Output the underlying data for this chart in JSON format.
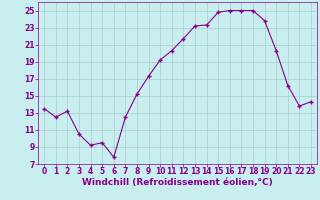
{
  "xlabel": "Windchill (Refroidissement éolien,°C)",
  "x": [
    0,
    1,
    2,
    3,
    4,
    5,
    6,
    7,
    8,
    9,
    10,
    11,
    12,
    13,
    14,
    15,
    16,
    17,
    18,
    19,
    20,
    21,
    22,
    23
  ],
  "y": [
    13.5,
    12.5,
    13.2,
    10.5,
    9.2,
    9.5,
    7.8,
    12.5,
    15.2,
    17.3,
    19.2,
    20.3,
    21.7,
    23.2,
    23.3,
    24.8,
    25.0,
    25.0,
    25.0,
    23.8,
    20.3,
    16.2,
    13.8,
    14.3
  ],
  "line_color": "#880088",
  "marker": "+",
  "background_color": "#c8eef0",
  "grid_color": "#aacccc",
  "ylim": [
    7,
    26
  ],
  "yticks": [
    7,
    9,
    11,
    13,
    15,
    17,
    19,
    21,
    23,
    25
  ],
  "xlim": [
    -0.5,
    23.5
  ],
  "xticks": [
    0,
    1,
    2,
    3,
    4,
    5,
    6,
    7,
    8,
    9,
    10,
    11,
    12,
    13,
    14,
    15,
    16,
    17,
    18,
    19,
    20,
    21,
    22,
    23
  ],
  "tick_label_color": "#880088",
  "xlabel_color": "#880088",
  "tick_fontsize": 5.5,
  "xlabel_fontsize": 6.5
}
